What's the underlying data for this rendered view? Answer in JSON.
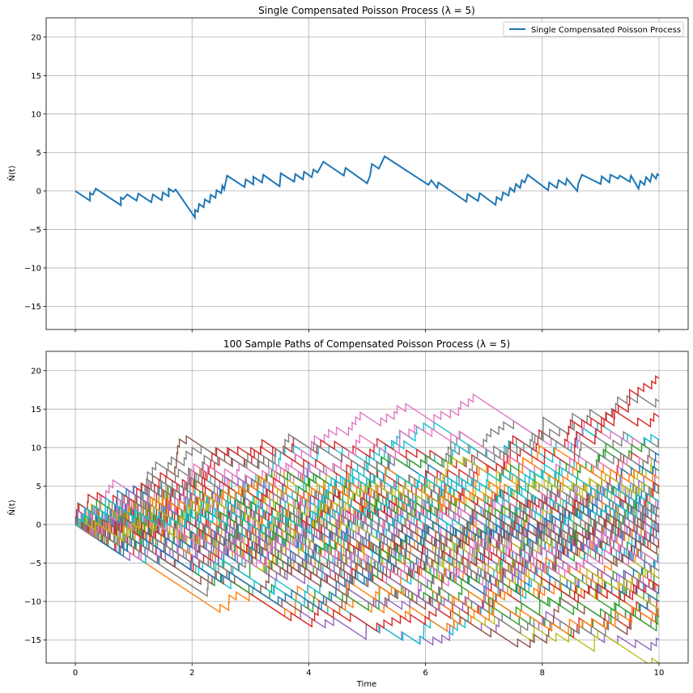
{
  "chart_data": [
    {
      "type": "line",
      "title": "Single Compensated Poisson Process (λ = 5)",
      "xlabel": "",
      "ylabel": "N̂(t)",
      "xlim": [
        -0.5,
        10.5
      ],
      "ylim": [
        -18,
        22.5
      ],
      "xticks": [
        0,
        2,
        4,
        6,
        8,
        10
      ],
      "yticks": [
        -15,
        -10,
        -5,
        0,
        5,
        10,
        15,
        20
      ],
      "show_xtick_labels": false,
      "grid": true,
      "legend": {
        "position": "top-right",
        "entries": [
          "Single Compensated Poisson Process"
        ]
      },
      "series": [
        {
          "name": "Single Compensated Poisson Process",
          "color": "#1f77b4",
          "path": [
            [
              0,
              0
            ],
            [
              0.25,
              -1.25
            ],
            [
              0.25,
              -0.25
            ],
            [
              0.3,
              -0.5
            ],
            [
              0.35,
              0.3
            ],
            [
              0.78,
              -1.85
            ],
            [
              0.78,
              -0.85
            ],
            [
              0.82,
              -1.05
            ],
            [
              0.89,
              -0.45
            ],
            [
              1.05,
              -1.25
            ],
            [
              1.08,
              -0.35
            ],
            [
              1.3,
              -1.45
            ],
            [
              1.33,
              -0.45
            ],
            [
              1.48,
              -1.2
            ],
            [
              1.5,
              -0.2
            ],
            [
              1.6,
              -0.7
            ],
            [
              1.6,
              0.3
            ],
            [
              1.68,
              -0.1
            ],
            [
              1.72,
              0.2
            ]
          ],
          "segments": [
            [
              [
                1.72,
                0.2
              ],
              [
                2.05,
                -3.45
              ],
              [
                2.05,
                -2.45
              ],
              [
                2.1,
                -2.7
              ],
              [
                2.12,
                -1.7
              ],
              [
                2.2,
                -2.1
              ],
              [
                2.22,
                -1.1
              ],
              [
                2.3,
                -1.5
              ],
              [
                2.32,
                -0.5
              ],
              [
                2.4,
                -0.9
              ],
              [
                2.42,
                0.1
              ],
              [
                2.5,
                -0.3
              ],
              [
                2.52,
                0.7
              ]
            ],
            [
              [
                2.52,
                0.7
              ],
              [
                2.55,
                0.2
              ],
              [
                2.6,
                2.0
              ],
              [
                2.9,
                0.5
              ],
              [
                2.92,
                1.5
              ],
              [
                3.05,
                0.85
              ],
              [
                3.05,
                1.85
              ],
              [
                3.2,
                1.1
              ],
              [
                3.22,
                2.1
              ],
              [
                3.5,
                0.6
              ],
              [
                3.52,
                2.3
              ],
              [
                3.75,
                1.2
              ],
              [
                3.77,
                2.2
              ],
              [
                3.9,
                1.5
              ],
              [
                3.92,
                2.5
              ],
              [
                4.05,
                1.8
              ],
              [
                4.08,
                2.8
              ],
              [
                4.15,
                2.4
              ],
              [
                4.25,
                3.8
              ],
              [
                4.6,
                2.0
              ],
              [
                4.63,
                3.0
              ],
              [
                5.0,
                1.0
              ],
              [
                5.05,
                2.0
              ],
              [
                5.08,
                3.5
              ],
              [
                5.2,
                2.9
              ],
              [
                5.3,
                4.5
              ]
            ],
            [
              [
                5.3,
                4.5
              ],
              [
                6.05,
                0.8
              ],
              [
                6.1,
                1.4
              ],
              [
                6.2,
                0.4
              ],
              [
                6.22,
                1.1
              ],
              [
                6.7,
                -1.4
              ],
              [
                6.72,
                -0.4
              ],
              [
                6.9,
                -1.3
              ],
              [
                6.93,
                -0.3
              ],
              [
                7.2,
                -1.8
              ],
              [
                7.22,
                -0.8
              ],
              [
                7.3,
                -1.2
              ],
              [
                7.33,
                -0.2
              ],
              [
                7.42,
                -0.6
              ],
              [
                7.45,
                0.4
              ],
              [
                7.52,
                -0.1
              ],
              [
                7.55,
                0.9
              ],
              [
                7.62,
                0.4
              ],
              [
                7.65,
                1.4
              ],
              [
                7.7,
                1.1
              ],
              [
                7.75,
                2.1
              ],
              [
                8.1,
                0.1
              ],
              [
                8.12,
                1.1
              ],
              [
                8.25,
                0.4
              ],
              [
                8.28,
                1.4
              ],
              [
                8.4,
                0.8
              ],
              [
                8.42,
                1.6
              ],
              [
                8.6,
                0.0
              ],
              [
                8.62,
                1.0
              ],
              [
                8.68,
                2.1
              ],
              [
                9.0,
                0.9
              ],
              [
                9.02,
                1.9
              ],
              [
                9.15,
                1.1
              ],
              [
                9.17,
                2.1
              ],
              [
                9.3,
                1.6
              ],
              [
                9.33,
                2.0
              ],
              [
                9.5,
                1.2
              ],
              [
                9.52,
                2.0
              ],
              [
                9.65,
                0.3
              ],
              [
                9.68,
                1.3
              ],
              [
                9.75,
                0.8
              ],
              [
                9.78,
                1.8
              ],
              [
                9.85,
                1.2
              ],
              [
                9.88,
                2.2
              ],
              [
                9.95,
                1.6
              ],
              [
                9.97,
                2.2
              ],
              [
                10.0,
                2.0
              ]
            ]
          ]
        }
      ]
    },
    {
      "type": "line",
      "title": "100 Sample Paths of Compensated Poisson Process (λ = 5)",
      "xlabel": "Time",
      "ylabel": "N̂(t)",
      "xlim": [
        -0.5,
        10.5
      ],
      "ylim": [
        -18,
        22.5
      ],
      "xticks": [
        0,
        2,
        4,
        6,
        8,
        10
      ],
      "yticks": [
        -15,
        -10,
        -5,
        0,
        5,
        10,
        15,
        20
      ],
      "show_xtick_labels": true,
      "grid": true,
      "paths": 100,
      "lambda": 5,
      "t_max": 10,
      "seed": 7,
      "palette": [
        "#1f77b4",
        "#ff7f0e",
        "#2ca02c",
        "#d62728",
        "#9467bd",
        "#8c564b",
        "#e377c2",
        "#7f7f7f",
        "#bcbd22",
        "#17becf"
      ]
    }
  ]
}
